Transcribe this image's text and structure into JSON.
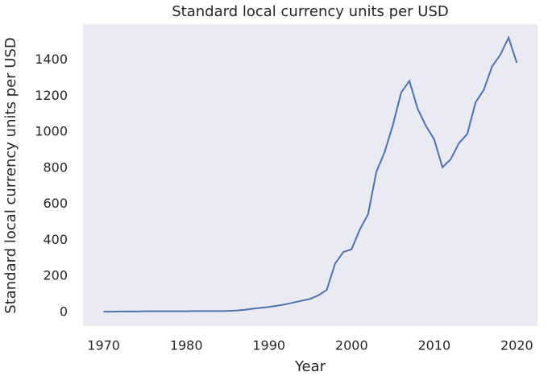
{
  "chart_data": {
    "type": "line",
    "title": "Standard local currency units per USD",
    "x_label": "Year",
    "y_label": "Standard local currency units per USD",
    "x": [
      1970,
      1971,
      1972,
      1973,
      1974,
      1975,
      1976,
      1977,
      1978,
      1979,
      1980,
      1981,
      1982,
      1983,
      1984,
      1985,
      1986,
      1987,
      1988,
      1989,
      1990,
      1991,
      1992,
      1993,
      1994,
      1995,
      1996,
      1997,
      1998,
      1999,
      2000,
      2001,
      2002,
      2003,
      2004,
      2005,
      2006,
      2007,
      2008,
      2009,
      2010,
      2011,
      2012,
      2013,
      2014,
      2015,
      2016,
      2017,
      2018,
      2019,
      2020
    ],
    "series": [
      {
        "name": "Standard local currency units per USD",
        "color": "#4c72b0",
        "values": [
          4,
          4,
          5,
          5,
          5,
          6,
          6,
          6,
          6,
          6,
          6,
          7,
          7,
          7,
          7,
          8,
          10,
          14,
          20,
          25,
          30,
          37,
          45,
          55,
          65,
          75,
          95,
          125,
          270,
          335,
          350,
          460,
          545,
          780,
          890,
          1040,
          1220,
          1285,
          1130,
          1035,
          960,
          805,
          850,
          940,
          990,
          1165,
          1235,
          1365,
          1430,
          1525,
          1385
        ]
      }
    ],
    "xlim": [
      1967.5,
      2022.5
    ],
    "xticks": [
      1970,
      1980,
      1990,
      2000,
      2010,
      2020
    ],
    "ylim": [
      -76,
      1600
    ],
    "yticks": [
      0,
      200,
      400,
      600,
      800,
      1000,
      1200,
      1400
    ],
    "grid": false
  }
}
